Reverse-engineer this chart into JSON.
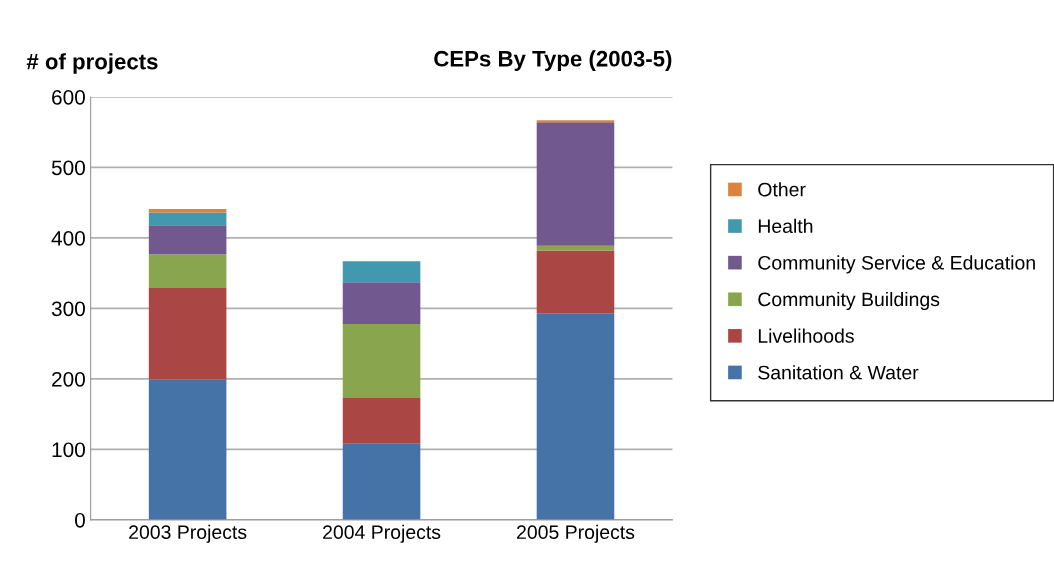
{
  "chart_data": {
    "type": "bar",
    "title": "CEPs By Type (2003-5)",
    "ylabel": "# of projects",
    "stacked": true,
    "categories": [
      "2003 Projects",
      "2004 Projects",
      "2005 Projects"
    ],
    "series": [
      {
        "name": "Sanitation & Water",
        "color": "#4572a7",
        "values": [
          199,
          108,
          293
        ]
      },
      {
        "name": "Livelihoods",
        "color": "#aa4643",
        "values": [
          130,
          65,
          89
        ]
      },
      {
        "name": "Community Buildings",
        "color": "#89a54e",
        "values": [
          48,
          105,
          7
        ]
      },
      {
        "name": "Community Service & Education",
        "color": "#71588f",
        "values": [
          41,
          59,
          175
        ]
      },
      {
        "name": "Health",
        "color": "#4198af",
        "values": [
          18,
          30,
          null
        ]
      },
      {
        "name": "Other",
        "color": "#db843d",
        "values": [
          5,
          null,
          3
        ]
      }
    ],
    "ylim": [
      0,
      600
    ],
    "yticks": [
      0,
      100,
      200,
      300,
      400,
      500,
      600
    ],
    "grid": "y",
    "legend": "right"
  }
}
